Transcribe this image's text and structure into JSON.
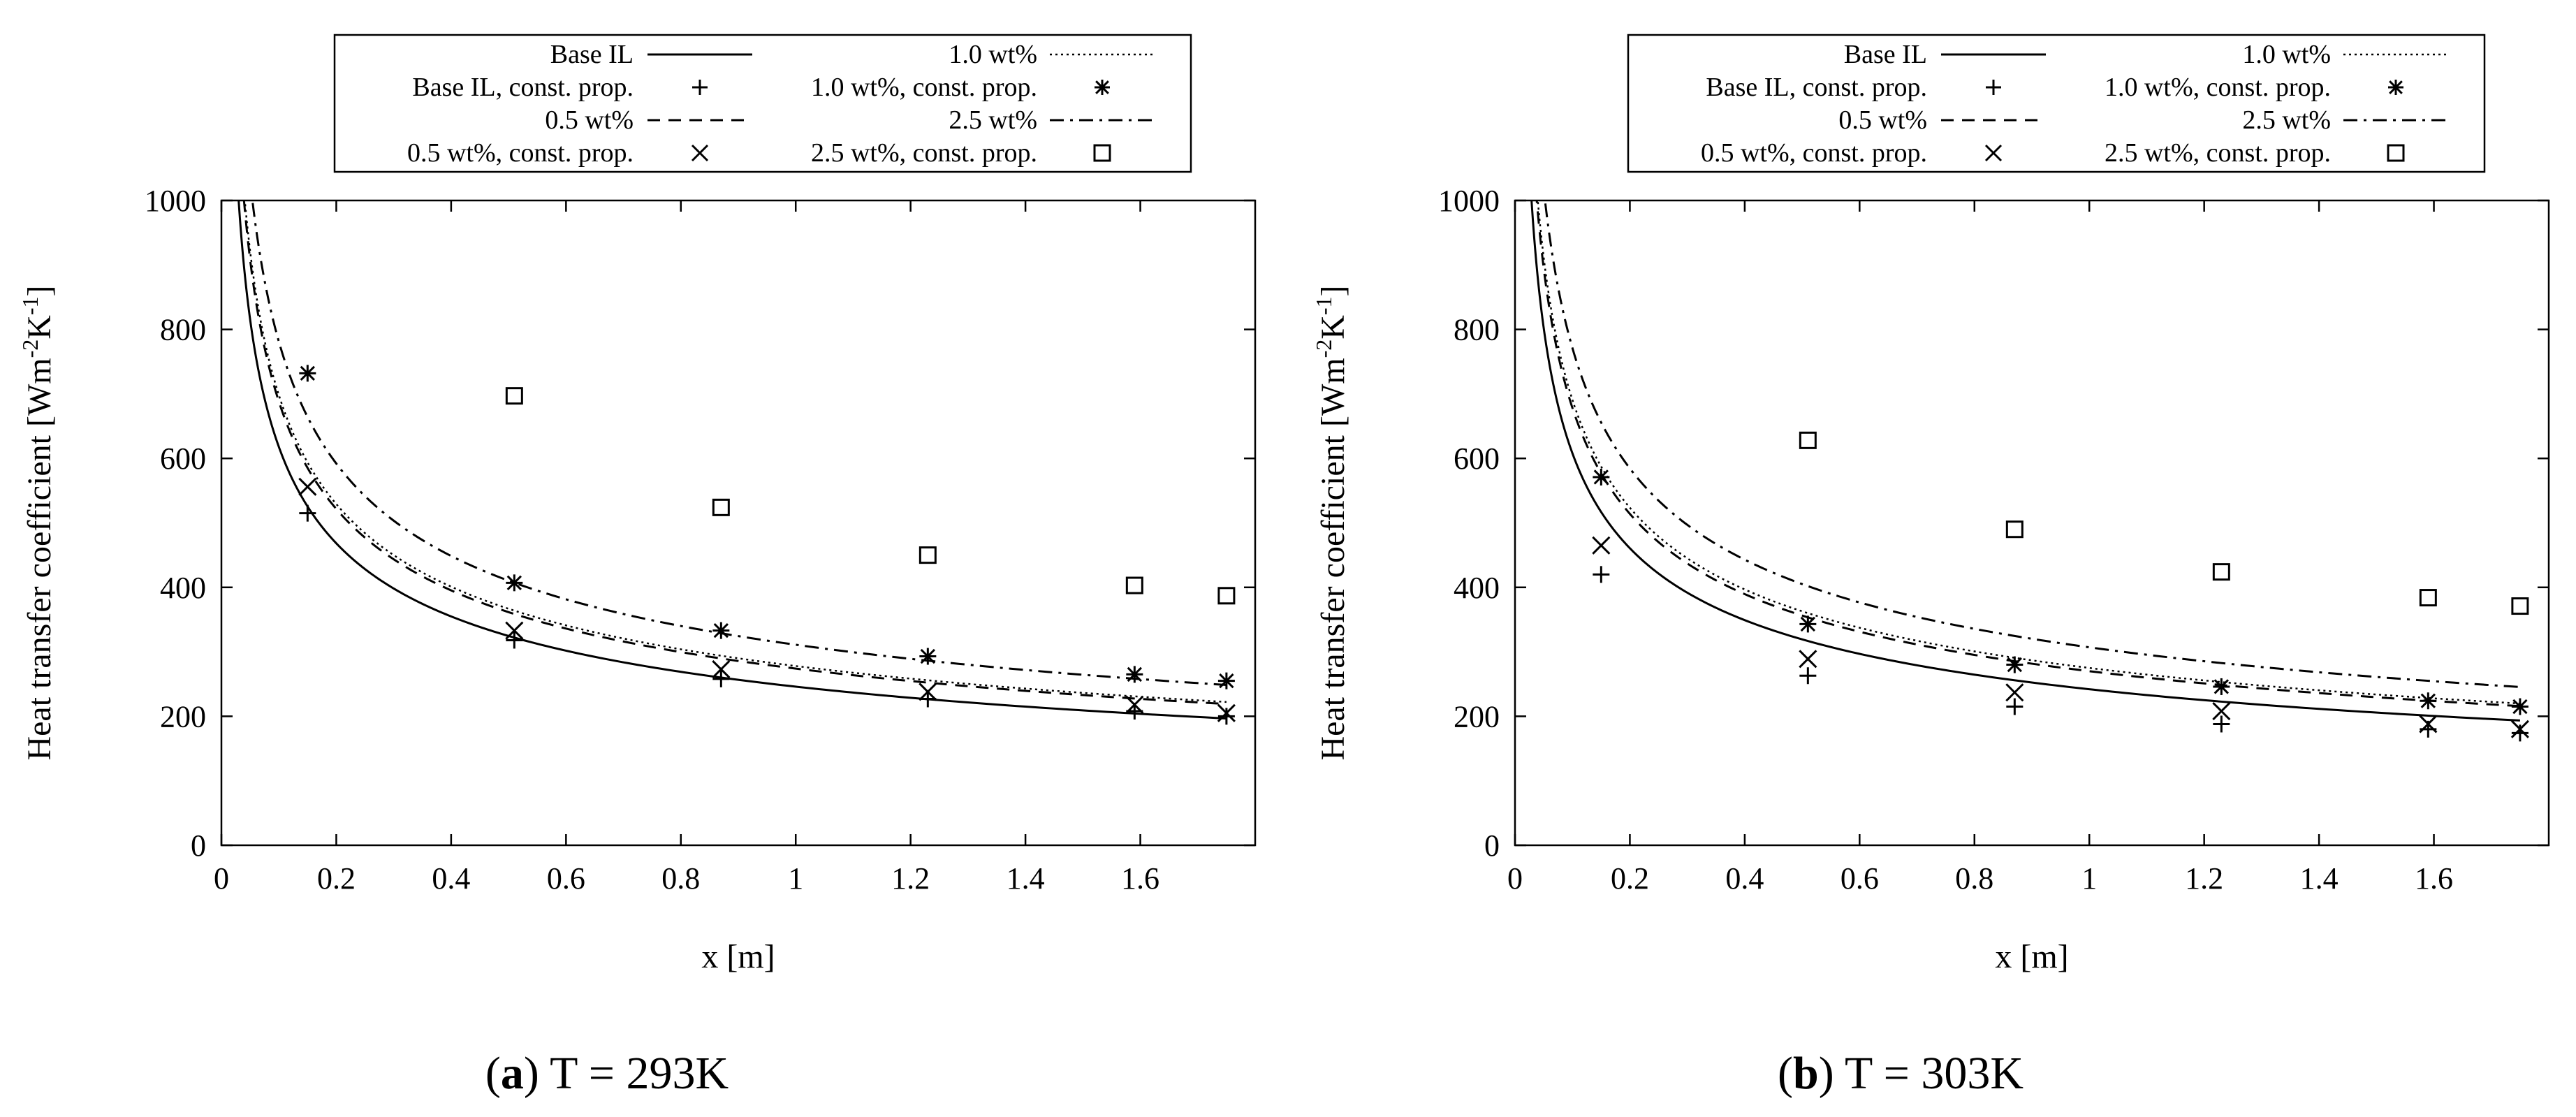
{
  "chart_data": [
    {
      "type": "line",
      "caption_letter": "a",
      "caption_rest": " T = 293K",
      "xlabel": "x [m]",
      "ylabel_main": "Heat transfer coefficient [Wm",
      "ylabel_sup1": "-2",
      "ylabel_mid": "K",
      "ylabel_sup2": "-1",
      "ylabel_end": "]",
      "xlim": [
        0,
        1.8
      ],
      "ylim": [
        0,
        1000
      ],
      "xticks": [
        0,
        0.2,
        0.4,
        0.6,
        0.8,
        1,
        1.2,
        1.4,
        1.6
      ],
      "xtick_labels": [
        "0",
        "0.2",
        "0.4",
        "0.6",
        "0.8",
        "1",
        "1.2",
        "1.4",
        "1.6"
      ],
      "yticks": [
        0,
        200,
        400,
        600,
        800,
        1000
      ],
      "ytick_labels": [
        "0",
        "200",
        "400",
        "600",
        "800",
        "1000"
      ],
      "series": [
        {
          "name": "Base IL",
          "kind": "line",
          "style": "solid",
          "k": 246,
          "n": 0.4,
          "x_start": 0.025,
          "x_end": 1.75
        },
        {
          "name": "1.0 wt%",
          "kind": "line",
          "style": "dotted",
          "k": 278,
          "n": 0.4,
          "x_start": 0.022,
          "x_end": 1.75
        },
        {
          "name": "0.5 wt%",
          "kind": "line",
          "style": "dashed",
          "k": 274,
          "n": 0.4,
          "x_start": 0.022,
          "x_end": 1.75
        },
        {
          "name": "2.5 wt%",
          "kind": "line",
          "style": "dashdot",
          "k": 311,
          "n": 0.4,
          "x_start": 0.018,
          "x_end": 1.75
        },
        {
          "name": "Base IL, const. prop.",
          "kind": "marker",
          "marker": "plus",
          "x": [
            0.15,
            0.51,
            0.87,
            1.23,
            1.59,
            1.75
          ],
          "y": [
            515,
            318,
            258,
            227,
            208,
            200
          ]
        },
        {
          "name": "1.0 wt%, const. prop.",
          "kind": "marker",
          "marker": "star",
          "x": [
            0.15,
            0.51,
            0.87,
            1.23,
            1.59,
            1.75
          ],
          "y": [
            732,
            407,
            333,
            293,
            265,
            255
          ]
        },
        {
          "name": "0.5 wt%, const. prop.",
          "kind": "marker",
          "marker": "cross",
          "x": [
            0.15,
            0.51,
            0.87,
            1.23,
            1.59,
            1.75
          ],
          "y": [
            556,
            333,
            273,
            238,
            218,
            205
          ]
        },
        {
          "name": "2.5 wt%, const. prop.",
          "kind": "marker",
          "marker": "square",
          "x": [
            0.51,
            0.87,
            1.23,
            1.59,
            1.75
          ],
          "y": [
            697,
            524,
            450,
            403,
            387
          ]
        }
      ]
    },
    {
      "type": "line",
      "caption_letter": "b",
      "caption_rest": " T = 303K",
      "xlabel": "x [m]",
      "ylabel_main": "Heat transfer coefficient [Wm",
      "ylabel_sup1": "-2",
      "ylabel_mid": "K",
      "ylabel_sup2": "-1",
      "ylabel_end": "]",
      "xlim": [
        0,
        1.8
      ],
      "ylim": [
        0,
        1000
      ],
      "xticks": [
        0,
        0.2,
        0.4,
        0.6,
        0.8,
        1,
        1.2,
        1.4,
        1.6
      ],
      "xtick_labels": [
        "0",
        "0.2",
        "0.4",
        "0.6",
        "0.8",
        "1",
        "1.2",
        "1.4",
        "1.6"
      ],
      "yticks": [
        0,
        200,
        400,
        600,
        800,
        1000
      ],
      "ytick_labels": [
        "0",
        "200",
        "400",
        "600",
        "800",
        "1000"
      ],
      "series": [
        {
          "name": "Base IL",
          "kind": "line",
          "style": "solid",
          "k": 242,
          "n": 0.4,
          "x_start": 0.025,
          "x_end": 1.75
        },
        {
          "name": "1.0 wt%",
          "kind": "line",
          "style": "dotted",
          "k": 275,
          "n": 0.4,
          "x_start": 0.022,
          "x_end": 1.75
        },
        {
          "name": "0.5 wt%",
          "kind": "line",
          "style": "dashed",
          "k": 270,
          "n": 0.4,
          "x_start": 0.022,
          "x_end": 1.75
        },
        {
          "name": "2.5 wt%",
          "kind": "line",
          "style": "dashdot",
          "k": 307,
          "n": 0.4,
          "x_start": 0.018,
          "x_end": 1.75
        },
        {
          "name": "Base IL, const. prop.",
          "kind": "marker",
          "marker": "plus",
          "x": [
            0.15,
            0.51,
            0.87,
            1.23,
            1.59,
            1.75
          ],
          "y": [
            420,
            263,
            215,
            188,
            180,
            174
          ]
        },
        {
          "name": "1.0 wt%, const. prop.",
          "kind": "marker",
          "marker": "star",
          "x": [
            0.15,
            0.51,
            0.87,
            1.23,
            1.59,
            1.75
          ],
          "y": [
            571,
            343,
            280,
            246,
            224,
            215
          ]
        },
        {
          "name": "0.5 wt%, const. prop.",
          "kind": "marker",
          "marker": "cross",
          "x": [
            0.15,
            0.51,
            0.87,
            1.23,
            1.59,
            1.75
          ],
          "y": [
            465,
            289,
            237,
            208,
            188,
            180
          ]
        },
        {
          "name": "2.5 wt%, const. prop.",
          "kind": "marker",
          "marker": "square",
          "x": [
            0.51,
            0.87,
            1.23,
            1.59,
            1.75
          ],
          "y": [
            628,
            490,
            424,
            384,
            371
          ]
        }
      ]
    }
  ]
}
